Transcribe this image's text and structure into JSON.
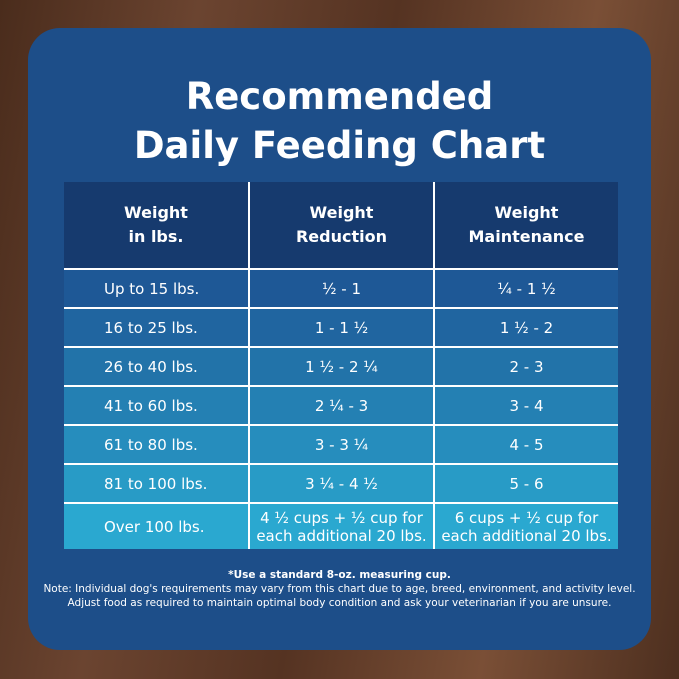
{
  "title": [
    "Recommended",
    "Daily Feeding Chart"
  ],
  "table": {
    "header": [
      [
        "Weight",
        "in lbs."
      ],
      [
        "Weight",
        "Reduction"
      ],
      [
        "Weight",
        "Maintenance"
      ]
    ],
    "rows": [
      [
        "Up to 15 lbs.",
        "½ - 1",
        "¼ - 1 ½"
      ],
      [
        "16 to 25 lbs.",
        "1 - 1 ½",
        "1 ½ - 2"
      ],
      [
        "26 to 40 lbs.",
        "1 ½ - 2 ¼",
        "2 - 3"
      ],
      [
        "41 to 60 lbs.",
        "2 ¼ - 3",
        "3 - 4"
      ],
      [
        "61 to 80 lbs.",
        "3 - 3 ¼",
        "4 - 5"
      ],
      [
        "81 to 100 lbs.",
        "3 ¼ - 4 ½",
        "5 - 6"
      ],
      [
        "Over 100 lbs.",
        [
          "4 ½ cups  + ½ cup for",
          "each additional 20 lbs."
        ],
        [
          "6 cups  + ½ cup for",
          "each additional 20 lbs."
        ]
      ]
    ]
  },
  "notes": [
    "*Use a standard 8-oz. measuring cup.",
    "Note: Individual dog's requirements may vary from this chart due to age, breed, environment, and activity level.",
    "Adjust food as required to maintain optimal body condition and ask your veterinarian if you are unsure."
  ]
}
